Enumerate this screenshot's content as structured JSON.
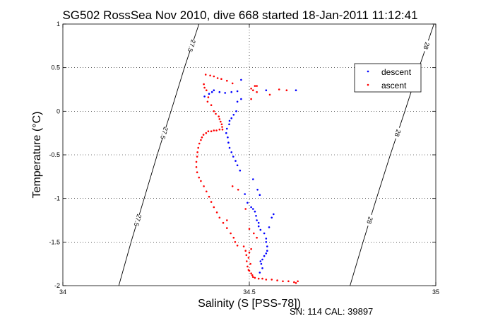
{
  "chart_data": {
    "type": "scatter",
    "title": "SG502 RossSea Nov 2010, dive 668 started 18-Jan-2011 11:12:41",
    "xlabel": "Salinity (S [PSS-78])",
    "ylabel": "Temperature (°C)",
    "footer": "SN: 114  CAL: 39897",
    "xlim": [
      34,
      35
    ],
    "ylim": [
      -2,
      1
    ],
    "xticks": [
      "34",
      "34.5",
      "35"
    ],
    "yticks": [
      "-2",
      "-1.5",
      "-1",
      "-0.5",
      "0",
      "0.5",
      "1"
    ],
    "grid": true,
    "legend_position": "top-right",
    "colors": {
      "descent": "#0000ff",
      "ascent": "#ff0000",
      "contour": "#000000"
    },
    "isopycnals": [
      {
        "label": "27.5",
        "points": [
          [
            34.15,
            -2.0
          ],
          [
            34.183,
            -1.5
          ],
          [
            34.218,
            -1.0
          ],
          [
            34.253,
            -0.5
          ],
          [
            34.29,
            0.0
          ],
          [
            34.326,
            0.5
          ],
          [
            34.365,
            1.0
          ]
        ]
      },
      {
        "label": "28",
        "points": [
          [
            34.77,
            -2.0
          ],
          [
            34.805,
            -1.5
          ],
          [
            34.841,
            -1.0
          ],
          [
            34.878,
            -0.5
          ],
          [
            34.917,
            0.0
          ],
          [
            34.955,
            0.5
          ],
          [
            34.995,
            1.0
          ]
        ]
      }
    ],
    "series": [
      {
        "name": "descent",
        "marker": "point",
        "points": [
          [
            34.545,
            0.24
          ],
          [
            34.625,
            0.24
          ],
          [
            34.468,
            0.23
          ],
          [
            34.452,
            0.22
          ],
          [
            34.435,
            0.21
          ],
          [
            34.42,
            0.22
          ],
          [
            34.405,
            0.24
          ],
          [
            34.4,
            0.22
          ],
          [
            34.392,
            0.2
          ],
          [
            34.38,
            0.17
          ],
          [
            34.478,
            0.14
          ],
          [
            34.468,
            0.11
          ],
          [
            34.478,
            0.36
          ],
          [
            34.465,
            0.0
          ],
          [
            34.458,
            -0.04
          ],
          [
            34.452,
            -0.08
          ],
          [
            34.447,
            -0.11
          ],
          [
            34.446,
            -0.15
          ],
          [
            34.44,
            -0.2
          ],
          [
            34.438,
            -0.25
          ],
          [
            34.442,
            -0.3
          ],
          [
            34.444,
            -0.36
          ],
          [
            34.447,
            -0.42
          ],
          [
            34.452,
            -0.47
          ],
          [
            34.457,
            -0.52
          ],
          [
            34.463,
            -0.57
          ],
          [
            34.468,
            -0.62
          ],
          [
            34.475,
            -0.68
          ],
          [
            34.488,
            -0.95
          ],
          [
            34.495,
            -1.05
          ],
          [
            34.505,
            -1.1
          ],
          [
            34.51,
            -1.12
          ],
          [
            34.515,
            -1.15
          ],
          [
            34.518,
            -1.2
          ],
          [
            34.52,
            -1.25
          ],
          [
            34.525,
            -1.28
          ],
          [
            34.525,
            -1.32
          ],
          [
            34.53,
            -1.36
          ],
          [
            34.54,
            -1.4
          ],
          [
            34.545,
            -1.46
          ],
          [
            34.545,
            -1.5
          ],
          [
            34.548,
            -1.55
          ],
          [
            34.548,
            -1.6
          ],
          [
            34.545,
            -1.63
          ],
          [
            34.54,
            -1.66
          ],
          [
            34.535,
            -1.7
          ],
          [
            34.53,
            -1.72
          ],
          [
            34.532,
            -1.75
          ],
          [
            34.535,
            -1.8
          ],
          [
            34.528,
            -1.85
          ],
          [
            34.56,
            -1.22
          ],
          [
            34.565,
            -1.18
          ],
          [
            34.553,
            -1.33
          ],
          [
            34.522,
            -0.9
          ],
          [
            34.528,
            -0.96
          ],
          [
            34.51,
            -0.78
          ]
        ]
      },
      {
        "name": "ascent",
        "marker": "point",
        "points": [
          [
            34.383,
            0.42
          ],
          [
            34.395,
            0.41
          ],
          [
            34.405,
            0.4
          ],
          [
            34.415,
            0.38
          ],
          [
            34.425,
            0.37
          ],
          [
            34.44,
            0.35
          ],
          [
            34.455,
            0.32
          ],
          [
            34.515,
            0.29
          ],
          [
            34.52,
            0.29
          ],
          [
            34.505,
            0.26
          ],
          [
            34.51,
            0.24
          ],
          [
            34.52,
            0.22
          ],
          [
            34.505,
            0.14
          ],
          [
            34.58,
            0.25
          ],
          [
            34.6,
            0.24
          ],
          [
            34.555,
            0.19
          ],
          [
            34.378,
            0.31
          ],
          [
            34.38,
            0.27
          ],
          [
            34.385,
            0.24
          ],
          [
            34.39,
            0.16
          ],
          [
            34.388,
            0.11
          ],
          [
            34.398,
            0.07
          ],
          [
            34.405,
            0.0
          ],
          [
            34.41,
            -0.03
          ],
          [
            34.418,
            -0.06
          ],
          [
            34.42,
            -0.09
          ],
          [
            34.423,
            -0.12
          ],
          [
            34.426,
            -0.15
          ],
          [
            34.427,
            -0.18
          ],
          [
            34.428,
            -0.21
          ],
          [
            34.42,
            -0.21
          ],
          [
            34.412,
            -0.22
          ],
          [
            34.405,
            -0.22
          ],
          [
            34.398,
            -0.23
          ],
          [
            34.39,
            -0.23
          ],
          [
            34.384,
            -0.25
          ],
          [
            34.377,
            -0.27
          ],
          [
            34.373,
            -0.3
          ],
          [
            34.37,
            -0.33
          ],
          [
            34.366,
            -0.37
          ],
          [
            34.363,
            -0.42
          ],
          [
            34.361,
            -0.47
          ],
          [
            34.36,
            -0.52
          ],
          [
            34.358,
            -0.58
          ],
          [
            34.358,
            -0.64
          ],
          [
            34.36,
            -0.7
          ],
          [
            34.365,
            -0.76
          ],
          [
            34.37,
            -0.8
          ],
          [
            34.378,
            -0.86
          ],
          [
            34.385,
            -0.92
          ],
          [
            34.392,
            -0.98
          ],
          [
            34.398,
            -1.04
          ],
          [
            34.405,
            -1.1
          ],
          [
            34.413,
            -1.16
          ],
          [
            34.42,
            -1.22
          ],
          [
            34.43,
            -1.28
          ],
          [
            34.44,
            -1.34
          ],
          [
            34.45,
            -1.4
          ],
          [
            34.458,
            -1.45
          ],
          [
            34.462,
            -1.5
          ],
          [
            34.468,
            -1.54
          ],
          [
            34.485,
            -1.55
          ],
          [
            34.49,
            -1.6
          ],
          [
            34.492,
            -1.65
          ],
          [
            34.493,
            -1.72
          ],
          [
            34.495,
            -1.78
          ],
          [
            34.5,
            -1.83
          ],
          [
            34.505,
            -1.86
          ],
          [
            34.508,
            -1.88
          ],
          [
            34.51,
            -1.9
          ],
          [
            34.515,
            -1.91
          ],
          [
            34.525,
            -1.92
          ],
          [
            34.535,
            -1.92
          ],
          [
            34.545,
            -1.93
          ],
          [
            34.56,
            -1.93
          ],
          [
            34.575,
            -1.94
          ],
          [
            34.59,
            -1.95
          ],
          [
            34.605,
            -1.95
          ],
          [
            34.62,
            -1.96
          ],
          [
            34.63,
            -1.95
          ],
          [
            34.625,
            -1.97
          ],
          [
            34.455,
            -0.86
          ],
          [
            34.47,
            -0.9
          ],
          [
            34.44,
            -1.25
          ],
          [
            34.49,
            -1.12
          ],
          [
            34.5,
            -1.35
          ],
          [
            34.512,
            -1.4
          ],
          [
            34.52,
            -1.45
          ],
          [
            34.505,
            -1.58
          ],
          [
            34.5,
            -1.62
          ],
          [
            34.498,
            -1.68
          ],
          [
            34.503,
            -1.75
          ],
          [
            34.498,
            -1.82
          ]
        ]
      }
    ]
  }
}
